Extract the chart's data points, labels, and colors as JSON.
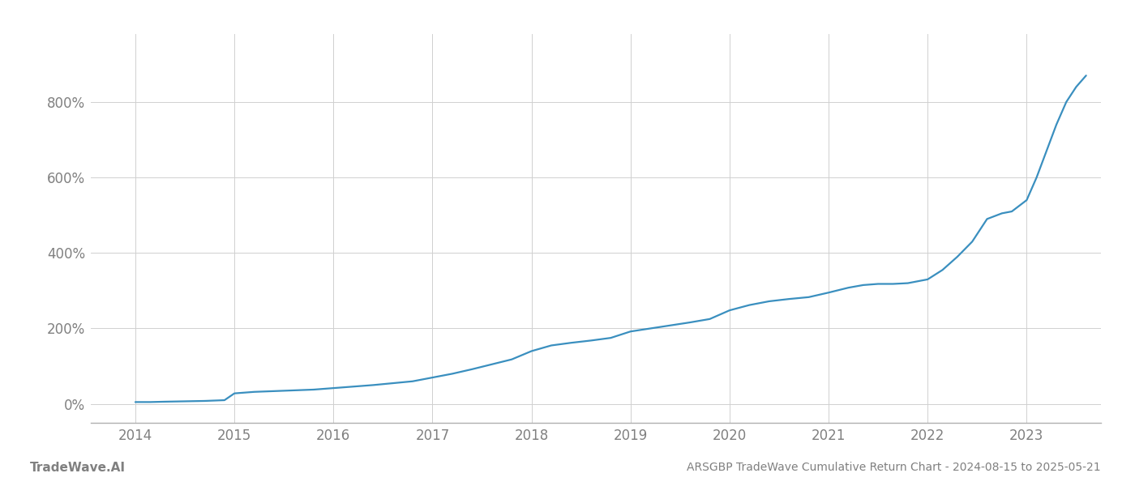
{
  "title": "ARSGBP TradeWave Cumulative Return Chart - 2024-08-15 to 2025-05-21",
  "watermark": "TradeWave.AI",
  "line_color": "#3a8fbf",
  "line_width": 1.6,
  "background_color": "#ffffff",
  "grid_color": "#d0d0d0",
  "text_color": "#808080",
  "ylim": [
    -50,
    980
  ],
  "xlim_left": 2013.55,
  "xlim_right": 2023.75,
  "data_points": [
    {
      "year": 2014.0,
      "value": 5
    },
    {
      "year": 2014.15,
      "value": 5
    },
    {
      "year": 2014.3,
      "value": 6
    },
    {
      "year": 2014.5,
      "value": 7
    },
    {
      "year": 2014.7,
      "value": 8
    },
    {
      "year": 2014.9,
      "value": 10
    },
    {
      "year": 2015.0,
      "value": 28
    },
    {
      "year": 2015.2,
      "value": 32
    },
    {
      "year": 2015.4,
      "value": 34
    },
    {
      "year": 2015.6,
      "value": 36
    },
    {
      "year": 2015.8,
      "value": 38
    },
    {
      "year": 2016.0,
      "value": 42
    },
    {
      "year": 2016.2,
      "value": 46
    },
    {
      "year": 2016.4,
      "value": 50
    },
    {
      "year": 2016.6,
      "value": 55
    },
    {
      "year": 2016.8,
      "value": 60
    },
    {
      "year": 2017.0,
      "value": 70
    },
    {
      "year": 2017.2,
      "value": 80
    },
    {
      "year": 2017.4,
      "value": 92
    },
    {
      "year": 2017.6,
      "value": 105
    },
    {
      "year": 2017.8,
      "value": 118
    },
    {
      "year": 2018.0,
      "value": 140
    },
    {
      "year": 2018.2,
      "value": 155
    },
    {
      "year": 2018.4,
      "value": 162
    },
    {
      "year": 2018.6,
      "value": 168
    },
    {
      "year": 2018.8,
      "value": 175
    },
    {
      "year": 2019.0,
      "value": 192
    },
    {
      "year": 2019.2,
      "value": 200
    },
    {
      "year": 2019.4,
      "value": 208
    },
    {
      "year": 2019.6,
      "value": 216
    },
    {
      "year": 2019.8,
      "value": 225
    },
    {
      "year": 2020.0,
      "value": 248
    },
    {
      "year": 2020.2,
      "value": 262
    },
    {
      "year": 2020.4,
      "value": 272
    },
    {
      "year": 2020.6,
      "value": 278
    },
    {
      "year": 2020.8,
      "value": 283
    },
    {
      "year": 2021.0,
      "value": 295
    },
    {
      "year": 2021.2,
      "value": 308
    },
    {
      "year": 2021.35,
      "value": 315
    },
    {
      "year": 2021.5,
      "value": 318
    },
    {
      "year": 2021.65,
      "value": 318
    },
    {
      "year": 2021.8,
      "value": 320
    },
    {
      "year": 2022.0,
      "value": 330
    },
    {
      "year": 2022.15,
      "value": 355
    },
    {
      "year": 2022.3,
      "value": 390
    },
    {
      "year": 2022.45,
      "value": 430
    },
    {
      "year": 2022.6,
      "value": 490
    },
    {
      "year": 2022.75,
      "value": 505
    },
    {
      "year": 2022.85,
      "value": 510
    },
    {
      "year": 2023.0,
      "value": 540
    },
    {
      "year": 2023.1,
      "value": 600
    },
    {
      "year": 2023.2,
      "value": 670
    },
    {
      "year": 2023.3,
      "value": 740
    },
    {
      "year": 2023.4,
      "value": 800
    },
    {
      "year": 2023.5,
      "value": 840
    },
    {
      "year": 2023.6,
      "value": 870
    }
  ]
}
